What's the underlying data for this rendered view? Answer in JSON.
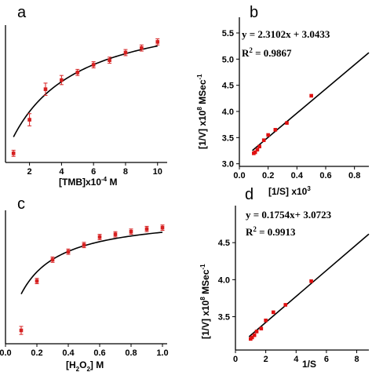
{
  "chart_data": [
    {
      "panel": "a",
      "type": "scatter",
      "xlabel_parts": [
        "[TMB]x10",
        "-4",
        " M"
      ],
      "ylabel": "",
      "xlim": [
        0.5,
        10.6
      ],
      "ylim": [
        0.1,
        1.0
      ],
      "xticks": [
        "2",
        "4",
        "6",
        "8",
        "10"
      ],
      "xtick_values": [
        2,
        4,
        6,
        8,
        10
      ],
      "x": [
        1,
        2,
        3,
        4,
        5,
        6,
        7,
        8,
        9,
        10
      ],
      "y": [
        0.16,
        0.38,
        0.58,
        0.64,
        0.69,
        0.74,
        0.77,
        0.82,
        0.85,
        0.89
      ],
      "yerr": [
        0.02,
        0.04,
        0.04,
        0.03,
        0.02,
        0.02,
        0.02,
        0.02,
        0.02,
        0.02
      ],
      "fit": "michaelis-menten",
      "fit_vmax": 1.2,
      "fit_km": 3.3,
      "marker_color": "#d62020"
    },
    {
      "panel": "b",
      "type": "scatter",
      "xlabel_parts": [
        "[1/S] x10",
        "3",
        ""
      ],
      "ylabel_parts": [
        "[1/V] x10",
        "8",
        " MSec",
        "-1"
      ],
      "xlim": [
        0,
        0.9
      ],
      "ylim": [
        2.95,
        5.8
      ],
      "xticks": [
        "0.0",
        "0.2",
        "0.4",
        "0.6",
        "0.8"
      ],
      "xtick_values": [
        0,
        0.2,
        0.4,
        0.6,
        0.8
      ],
      "yticks": [
        "3.0",
        "3.5",
        "4.0",
        "4.5",
        "5.0",
        "5.5"
      ],
      "ytick_values": [
        3.0,
        3.5,
        4.0,
        4.5,
        5.0,
        5.5
      ],
      "x": [
        0.1,
        0.11,
        0.125,
        0.14,
        0.17,
        0.2,
        0.25,
        0.33,
        0.5
      ],
      "y": [
        3.2,
        3.22,
        3.27,
        3.33,
        3.45,
        3.55,
        3.65,
        3.78,
        4.3
      ],
      "fit_slope": 2.3102,
      "fit_intercept": 3.0433,
      "equation": "y = 2.3102x + 3.0433",
      "r2_label": "R",
      "r2_sup": "2",
      "r2_value": " = 0.9867",
      "marker_color": "#e01010"
    },
    {
      "panel": "c",
      "type": "scatter",
      "xlabel_parts": [
        "[H",
        "2",
        "O",
        "2",
        "] M"
      ],
      "ylabel": "",
      "xlim": [
        0,
        1.03
      ],
      "ylim": [
        0.0,
        1.0
      ],
      "xticks": [
        "0.0",
        "0.2",
        "0.4",
        "0.6",
        "0.8",
        "1.0"
      ],
      "xtick_values": [
        0,
        0.2,
        0.4,
        0.6,
        0.8,
        1.0
      ],
      "x": [
        0.1,
        0.2,
        0.3,
        0.4,
        0.5,
        0.6,
        0.7,
        0.8,
        0.9,
        1.0
      ],
      "y": [
        0.1,
        0.47,
        0.63,
        0.69,
        0.74,
        0.8,
        0.82,
        0.84,
        0.86,
        0.87
      ],
      "yerr": [
        0.03,
        0.02,
        0.02,
        0.02,
        0.02,
        0.02,
        0.02,
        0.02,
        0.02,
        0.02
      ],
      "fit": "michaelis-menten",
      "fit_vmax": 1.05,
      "fit_km": 0.16,
      "marker_color": "#d62020"
    },
    {
      "panel": "d",
      "type": "scatter",
      "xlabel_parts": [
        "1/S",
        "",
        ""
      ],
      "ylabel_parts": [
        "[1/V] x10",
        "8",
        " MSec",
        "-1"
      ],
      "xlim": [
        0,
        8.8
      ],
      "ylim": [
        3.05,
        5.0
      ],
      "xticks": [
        "0",
        "2",
        "4",
        "6",
        "8"
      ],
      "xtick_values": [
        0,
        2,
        4,
        6,
        8
      ],
      "yticks": [
        "3.5",
        "4.0",
        "4.5"
      ],
      "ytick_values": [
        3.5,
        4.0,
        4.5
      ],
      "x": [
        1.0,
        1.1,
        1.25,
        1.4,
        1.7,
        2.0,
        2.5,
        3.3,
        5.0
      ],
      "y": [
        3.2,
        3.22,
        3.25,
        3.3,
        3.34,
        3.45,
        3.56,
        3.66,
        3.98
      ],
      "fit_slope": 0.1754,
      "fit_intercept": 3.0723,
      "equation": "y = 0.1754x+ 3.0723",
      "r2_label": "R",
      "r2_sup": "2",
      "r2_value": " = 0.9913",
      "marker_color": "#e01010"
    }
  ],
  "panel_letters": [
    "a",
    "b",
    "c",
    "d"
  ]
}
